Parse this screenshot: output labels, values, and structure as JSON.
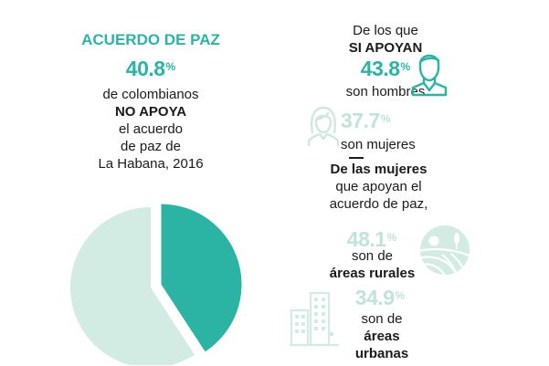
{
  "left": {
    "title": "ACUERDO DE PAZ",
    "stat_value": "40.8",
    "stat_unit": "%",
    "lines": [
      "de colombianos",
      "NO APOYA",
      "el acuerdo",
      "de paz de",
      "La Habana, 2016"
    ]
  },
  "right": {
    "intro_line1": "De los que",
    "intro_line2": "SI APOYAN",
    "men_value": "43.8",
    "men_unit": "%",
    "men_label": "son hombres",
    "women_value": "37.7",
    "women_unit": "%",
    "women_label": "son mujeres",
    "subsection_lines": [
      "De las mujeres",
      "que apoyan el",
      "acuerdo de paz,"
    ],
    "rural_value": "48.1",
    "rural_unit": "%",
    "rural_lines": [
      "son de",
      "áreas rurales"
    ],
    "urban_value": "34.9",
    "urban_unit": "%",
    "urban_lines": [
      "son de",
      "áreas urbanas"
    ]
  },
  "colors": {
    "accent": "#2bb3a3",
    "pale": "#d2ebe3",
    "muted_icon": "#cfe8df"
  },
  "chart_data": {
    "type": "pie",
    "values": [
      40.8,
      59.2
    ],
    "colors": [
      "#2bb3a3",
      "#d2ebe3"
    ],
    "start_angle_deg": 270,
    "exploded": [
      true,
      false
    ]
  }
}
